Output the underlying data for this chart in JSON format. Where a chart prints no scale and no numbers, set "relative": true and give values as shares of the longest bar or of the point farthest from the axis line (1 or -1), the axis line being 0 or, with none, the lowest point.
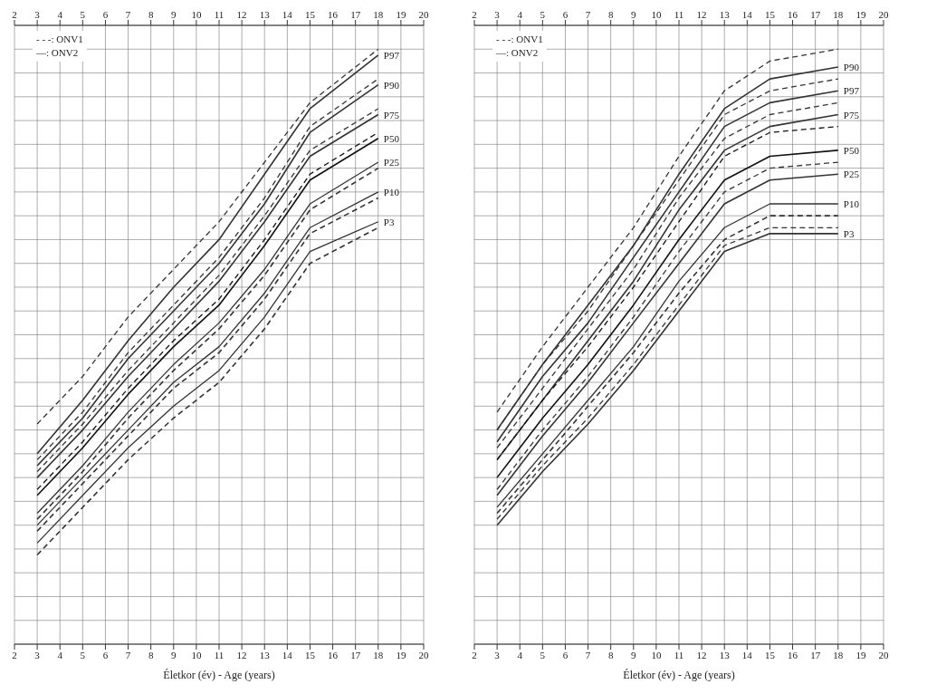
{
  "chart_data": [
    {
      "type": "line",
      "relative": true,
      "xlabel": "Életkor (év) - Age (years)",
      "x": [
        3,
        5,
        7,
        9,
        11,
        13,
        15,
        18
      ],
      "xlim": [
        2,
        20
      ],
      "xticks": [
        2,
        3,
        4,
        5,
        6,
        7,
        8,
        9,
        10,
        11,
        12,
        13,
        14,
        15,
        16,
        17,
        18,
        19,
        20
      ],
      "x2lim": [
        2,
        20
      ],
      "x2ticks": [
        2,
        3,
        4,
        5,
        6,
        7,
        8,
        9,
        10,
        11,
        12,
        13,
        14,
        15,
        16,
        17,
        18,
        19,
        20
      ],
      "tick_labels": "x",
      "grid": true,
      "marker": "none",
      "annotations": [
        "- - -: ONV1",
        "—: ONV2"
      ],
      "series": [
        {
          "color": "#333333",
          "line_style": "dashed",
          "values": [
            0.37,
            0.45,
            0.55,
            0.63,
            0.71,
            0.81,
            0.91,
            1.0
          ]
        },
        {
          "name": "P97",
          "color": "#333333",
          "line_style": "solid",
          "values": [
            0.32,
            0.41,
            0.51,
            0.6,
            0.68,
            0.79,
            0.9,
            0.99
          ]
        },
        {
          "color": "#333333",
          "line_style": "dashed",
          "values": [
            0.31,
            0.39,
            0.49,
            0.57,
            0.65,
            0.75,
            0.87,
            0.95
          ]
        },
        {
          "name": "P90",
          "color": "#333333",
          "line_style": "solid",
          "values": [
            0.3,
            0.38,
            0.48,
            0.56,
            0.64,
            0.74,
            0.86,
            0.94
          ]
        },
        {
          "color": "#333333",
          "line_style": "dashed",
          "values": [
            0.29,
            0.37,
            0.46,
            0.54,
            0.62,
            0.72,
            0.83,
            0.9
          ]
        },
        {
          "name": "P75",
          "color": "#333333",
          "line_style": "solid",
          "values": [
            0.28,
            0.36,
            0.45,
            0.53,
            0.61,
            0.71,
            0.82,
            0.89
          ]
        },
        {
          "color": "#111111",
          "line_style": "dashed",
          "values": [
            0.26,
            0.34,
            0.43,
            0.51,
            0.58,
            0.68,
            0.79,
            0.86
          ]
        },
        {
          "name": "P50",
          "color": "#111111",
          "line_style": "solid",
          "values": [
            0.25,
            0.33,
            0.42,
            0.5,
            0.57,
            0.67,
            0.78,
            0.85
          ]
        },
        {
          "name": "P25",
          "color": "#333333",
          "line_style": "solid",
          "values": [
            0.22,
            0.3,
            0.39,
            0.47,
            0.54,
            0.63,
            0.74,
            0.81
          ]
        },
        {
          "color": "#333333",
          "line_style": "dashed",
          "values": [
            0.21,
            0.29,
            0.38,
            0.46,
            0.53,
            0.62,
            0.73,
            0.8
          ]
        },
        {
          "name": "P10",
          "color": "#333333",
          "line_style": "solid",
          "values": [
            0.2,
            0.28,
            0.36,
            0.44,
            0.5,
            0.59,
            0.7,
            0.76
          ]
        },
        {
          "color": "#333333",
          "line_style": "dashed",
          "values": [
            0.19,
            0.27,
            0.35,
            0.43,
            0.49,
            0.58,
            0.69,
            0.75
          ]
        },
        {
          "name": "P3",
          "color": "#333333",
          "line_style": "solid",
          "values": [
            0.17,
            0.25,
            0.33,
            0.4,
            0.46,
            0.55,
            0.66,
            0.71
          ]
        },
        {
          "color": "#333333",
          "line_style": "dashed",
          "values": [
            0.15,
            0.23,
            0.31,
            0.38,
            0.44,
            0.53,
            0.64,
            0.7
          ]
        }
      ]
    },
    {
      "type": "line",
      "relative": true,
      "xlabel": "Életkor (év) - Age (years)",
      "x": [
        3,
        5,
        7,
        9,
        11,
        13,
        15,
        18
      ],
      "xlim": [
        2,
        20
      ],
      "xticks": [
        2,
        3,
        4,
        5,
        6,
        7,
        8,
        9,
        10,
        11,
        12,
        13,
        14,
        15,
        16,
        17,
        18,
        19,
        20
      ],
      "x2lim": [
        2,
        20
      ],
      "x2ticks": [
        2,
        3,
        4,
        5,
        6,
        7,
        8,
        9,
        10,
        11,
        12,
        13,
        14,
        15,
        16,
        17,
        18,
        19,
        20
      ],
      "tick_labels": "x",
      "grid": true,
      "marker": "none",
      "annotations": [
        "- - -: ONV1",
        "—: ONV2"
      ],
      "series": [
        {
          "color": "#333333",
          "line_style": "dashed",
          "values": [
            0.39,
            0.5,
            0.6,
            0.7,
            0.82,
            0.93,
            0.98,
            1.0
          ]
        },
        {
          "name": "P90",
          "color": "#333333",
          "line_style": "solid",
          "values": [
            0.36,
            0.47,
            0.57,
            0.67,
            0.79,
            0.9,
            0.95,
            0.97
          ]
        },
        {
          "color": "#333333",
          "line_style": "dashed",
          "values": [
            0.36,
            0.47,
            0.56,
            0.67,
            0.78,
            0.89,
            0.93,
            0.95
          ]
        },
        {
          "name": "P97",
          "color": "#333333",
          "line_style": "solid",
          "values": [
            0.34,
            0.45,
            0.54,
            0.65,
            0.76,
            0.87,
            0.91,
            0.93
          ]
        },
        {
          "color": "#333333",
          "line_style": "dashed",
          "values": [
            0.33,
            0.43,
            0.53,
            0.63,
            0.75,
            0.85,
            0.89,
            0.91
          ]
        },
        {
          "name": "P75",
          "color": "#333333",
          "line_style": "solid",
          "values": [
            0.31,
            0.41,
            0.51,
            0.61,
            0.73,
            0.83,
            0.87,
            0.89
          ]
        },
        {
          "color": "#111111",
          "line_style": "dashed",
          "values": [
            0.31,
            0.41,
            0.5,
            0.6,
            0.71,
            0.82,
            0.86,
            0.87
          ]
        },
        {
          "name": "P50",
          "color": "#111111",
          "line_style": "solid",
          "values": [
            0.28,
            0.38,
            0.47,
            0.57,
            0.68,
            0.78,
            0.82,
            0.83
          ]
        },
        {
          "color": "#333333",
          "line_style": "dashed",
          "values": [
            0.26,
            0.36,
            0.45,
            0.55,
            0.66,
            0.76,
            0.8,
            0.81
          ]
        },
        {
          "name": "P25",
          "color": "#333333",
          "line_style": "solid",
          "values": [
            0.25,
            0.35,
            0.44,
            0.54,
            0.64,
            0.74,
            0.78,
            0.79
          ]
        },
        {
          "name": "P10",
          "color": "#333333",
          "line_style": "solid",
          "values": [
            0.23,
            0.32,
            0.41,
            0.5,
            0.61,
            0.7,
            0.74,
            0.74
          ]
        },
        {
          "color": "#333333",
          "line_style": "dashed",
          "values": [
            0.22,
            0.31,
            0.4,
            0.49,
            0.59,
            0.68,
            0.72,
            0.72
          ]
        },
        {
          "color": "#333333",
          "line_style": "dashed",
          "values": [
            0.21,
            0.3,
            0.38,
            0.47,
            0.57,
            0.67,
            0.7,
            0.7
          ]
        },
        {
          "name": "P3",
          "color": "#333333",
          "line_style": "solid",
          "values": [
            0.2,
            0.29,
            0.37,
            0.46,
            0.56,
            0.66,
            0.69,
            0.69
          ]
        }
      ]
    }
  ]
}
